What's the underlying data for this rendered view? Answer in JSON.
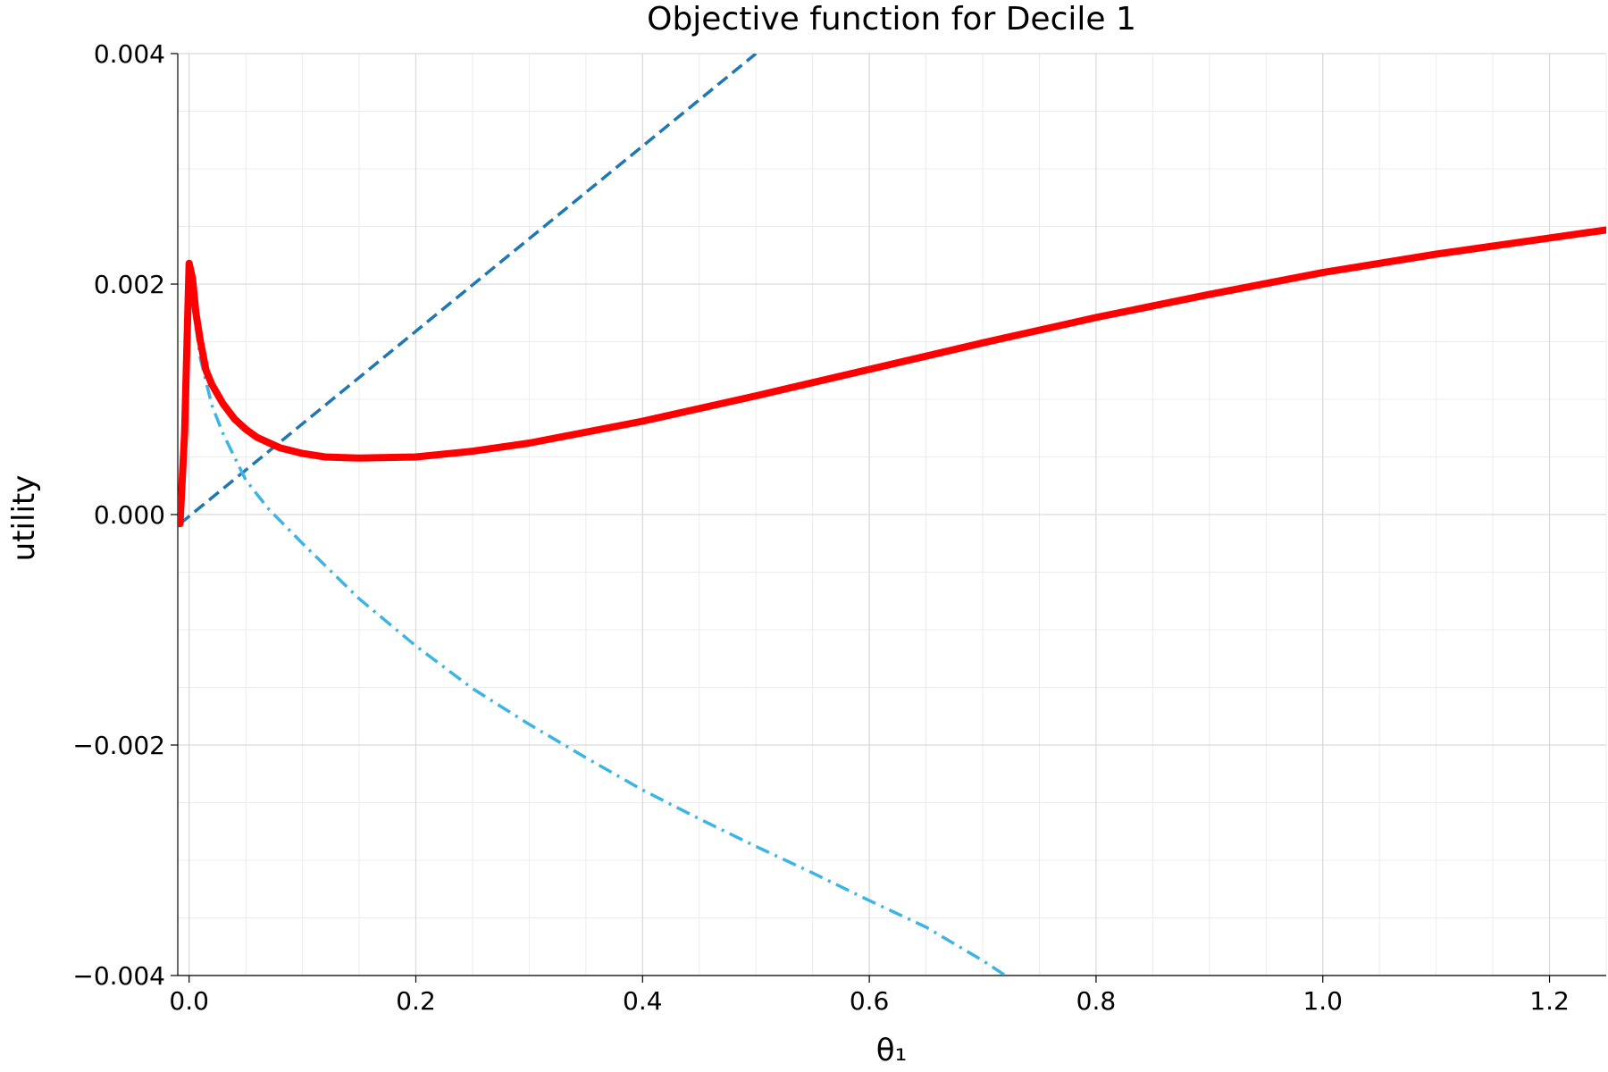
{
  "chart_data": {
    "type": "line",
    "title": "Objective function for Decile 1",
    "xlabel": "θ₁",
    "ylabel": "utility",
    "xlim": [
      -0.01,
      1.25
    ],
    "ylim": [
      -0.004,
      0.004
    ],
    "x_ticks": [
      0.0,
      0.2,
      0.4,
      0.6,
      0.8,
      1.0,
      1.2
    ],
    "x_tick_labels": [
      "0.0",
      "0.2",
      "0.4",
      "0.6",
      "0.8",
      "1.0",
      "1.2"
    ],
    "y_ticks": [
      -0.004,
      -0.002,
      0.0,
      0.002,
      0.004
    ],
    "y_tick_labels": [
      "−0.004",
      "−0.002",
      "0.000",
      "0.002",
      "0.004"
    ],
    "grid": true,
    "legend": "none",
    "series": [
      {
        "style": "solid-thick",
        "color": "#ff0000",
        "x": [
          -0.008,
          -0.004,
          0.0,
          0.003,
          0.006,
          0.01,
          0.015,
          0.02,
          0.03,
          0.04,
          0.05,
          0.06,
          0.08,
          0.1,
          0.12,
          0.15,
          0.2,
          0.25,
          0.3,
          0.4,
          0.5,
          0.6,
          0.7,
          0.8,
          0.9,
          1.0,
          1.1,
          1.2,
          1.25
        ],
        "y": [
          -8e-05,
          0.0007,
          0.00218,
          0.00205,
          0.00175,
          0.0015,
          0.00125,
          0.00113,
          0.00096,
          0.00083,
          0.00074,
          0.00067,
          0.00058,
          0.00053,
          0.0005,
          0.00049,
          0.0005,
          0.00055,
          0.00062,
          0.00081,
          0.00103,
          0.00126,
          0.00149,
          0.00171,
          0.00191,
          0.0021,
          0.00226,
          0.0024,
          0.00247
        ]
      },
      {
        "style": "dashed",
        "color": "#1f77b4",
        "x": [
          -0.008,
          0.5
        ],
        "y": [
          -8e-05,
          0.004
        ]
      },
      {
        "style": "dash-dot",
        "color": "#3cb4e6",
        "x": [
          -0.008,
          -0.004,
          0.0,
          0.005,
          0.01,
          0.02,
          0.03,
          0.05,
          0.07,
          0.1,
          0.15,
          0.2,
          0.25,
          0.3,
          0.35,
          0.4,
          0.45,
          0.5,
          0.55,
          0.6,
          0.65,
          0.7,
          0.72
        ],
        "y": [
          -8e-05,
          0.0007,
          0.00205,
          0.0017,
          0.00135,
          0.00095,
          0.0007,
          0.0003,
          5e-05,
          -0.00025,
          -0.00073,
          -0.00114,
          -0.00151,
          -0.00182,
          -0.00211,
          -0.00239,
          -0.00264,
          -0.00288,
          -0.00311,
          -0.00335,
          -0.00358,
          -0.00387,
          -0.004
        ]
      }
    ]
  }
}
